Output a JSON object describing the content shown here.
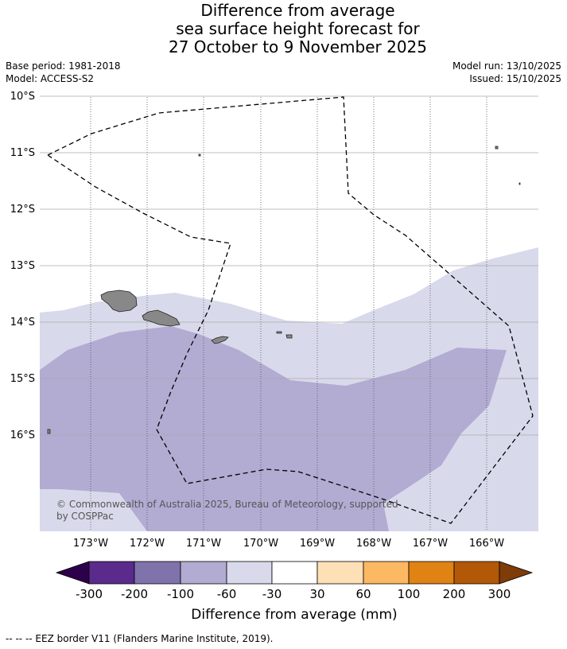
{
  "title": {
    "line1": "Difference from average",
    "line2": "sea surface height forecast for",
    "line3": "27 October to 9 November 2025"
  },
  "meta": {
    "base_period": "Base period: 1981-2018",
    "model": "Model: ACCESS-S2",
    "model_run": "Model run: 13/10/2025",
    "issued": "Issued: 15/10/2025"
  },
  "map": {
    "lat_labels": [
      "10°S",
      "11°S",
      "12°S",
      "13°S",
      "14°S",
      "15°S",
      "16°S"
    ],
    "lon_labels": [
      "173°W",
      "172°W",
      "171°W",
      "170°W",
      "169°W",
      "168°W",
      "167°W",
      "166°W"
    ],
    "copyright_line1": "© Commonwealth of Australia 2025, Bureau of Meteorology, supported",
    "copyright_line2": "by COSPPac"
  },
  "colorbar": {
    "label": "Difference from average (mm)",
    "ticks": [
      "-300",
      "-200",
      "-100",
      "-60",
      "-30",
      "30",
      "60",
      "100",
      "200",
      "300"
    ],
    "colors": [
      "#2d004b",
      "#5a2a8c",
      "#8073ac",
      "#b2abd2",
      "#d8daeb",
      "#ffffff",
      "#fee0b6",
      "#fdb863",
      "#e08214",
      "#b35806",
      "#7f3b08"
    ]
  },
  "footnote": "--  --  -- EEZ border V11 (Flanders Marine Institute, 2019)."
}
